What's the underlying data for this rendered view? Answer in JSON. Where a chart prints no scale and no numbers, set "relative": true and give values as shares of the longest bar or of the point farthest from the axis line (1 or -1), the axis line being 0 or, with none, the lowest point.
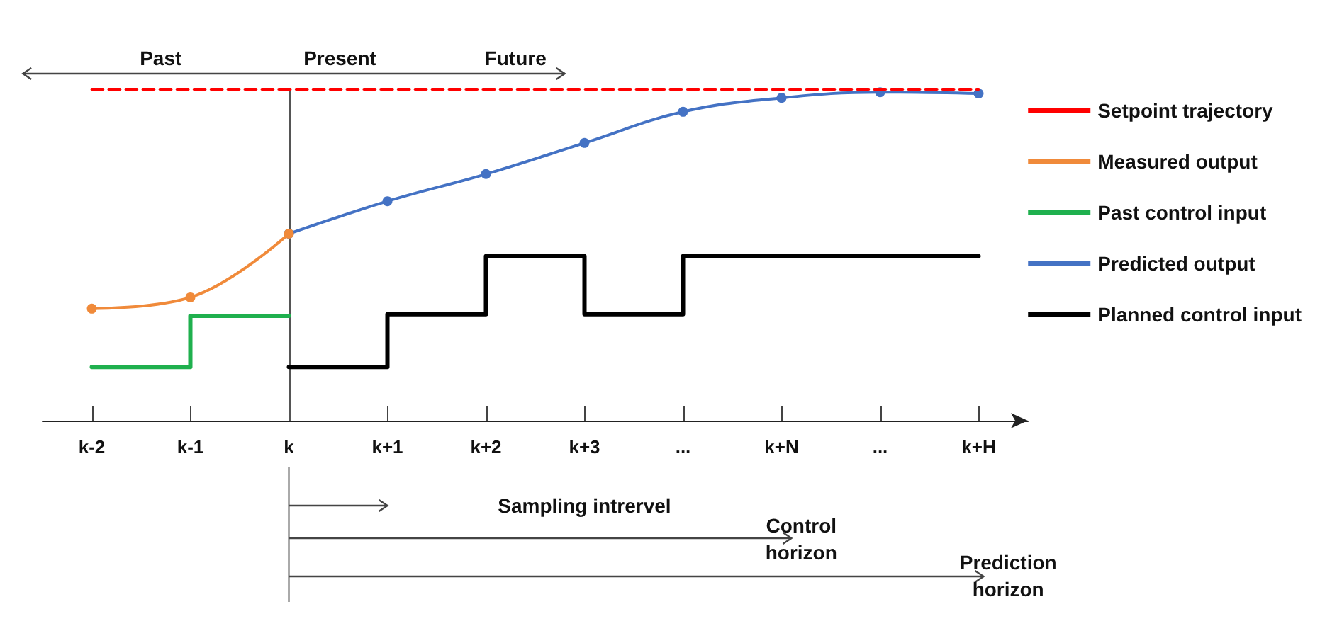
{
  "chart_data": {
    "type": "line",
    "relative": true,
    "categories": [
      "k-2",
      "k-1",
      "k",
      "k+1",
      "k+2",
      "k+3",
      "...",
      "k+N",
      "...",
      "k+H"
    ],
    "series": [
      {
        "name": "Setpoint trajectory",
        "color": "#ff0000",
        "line_style": "dashed",
        "marker": "none",
        "values": [
          1,
          1,
          1,
          1,
          1,
          1,
          1,
          1,
          1,
          1
        ]
      },
      {
        "name": "Measured output",
        "color": "#f08a3a",
        "marker": "circle",
        "values": [
          0.338,
          0.372,
          0.564,
          null,
          null,
          null,
          null,
          null,
          null,
          null
        ]
      },
      {
        "name": "Past control input",
        "type": "step",
        "color": "#1fb04e",
        "marker": "none",
        "values": [
          0.162,
          0.316,
          0.316,
          null,
          null,
          null,
          null,
          null,
          null,
          null
        ]
      },
      {
        "name": "Predicted output",
        "color": "#4472c4",
        "marker": "circle",
        "values": [
          null,
          null,
          0.564,
          0.662,
          0.744,
          0.838,
          0.932,
          0.974,
          0.991,
          0.987
        ]
      },
      {
        "name": "Planned control input",
        "type": "step",
        "color": "#000000",
        "marker": "none",
        "values": [
          null,
          null,
          0.162,
          0.321,
          0.496,
          0.321,
          0.496,
          0.496,
          0.496,
          0.496
        ]
      }
    ],
    "ref_lines": [
      {
        "axis": "x",
        "value": "k",
        "label": "Present"
      }
    ],
    "annotations": [
      "Past",
      "Future",
      "Sampling intrervel",
      "Control horizon",
      "Prediction horizon"
    ],
    "legend": "right",
    "grid": false
  }
}
